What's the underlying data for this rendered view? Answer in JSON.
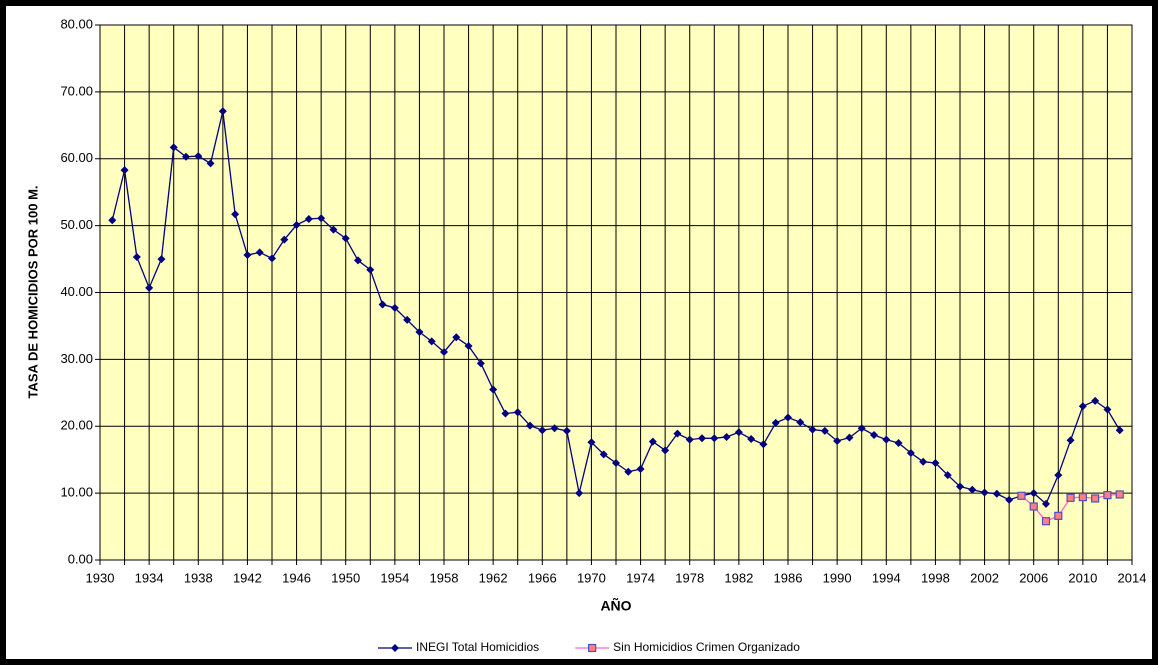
{
  "chart_data": {
    "type": "line",
    "xlabel": "AÑO",
    "ylabel": "TASA DE HOMICIDIOS POR 100 M.",
    "xlim": [
      1930,
      2014
    ],
    "xticks": [
      1930,
      1934,
      1938,
      1942,
      1946,
      1950,
      1954,
      1958,
      1962,
      1966,
      1970,
      1974,
      1978,
      1982,
      1986,
      1990,
      1994,
      1998,
      2002,
      2006,
      2010,
      2014
    ],
    "xminorticks": [
      1932,
      1936,
      1940,
      1944,
      1948,
      1952,
      1956,
      1960,
      1964,
      1968,
      1972,
      1976,
      1980,
      1984,
      1988,
      1992,
      1996,
      2000,
      2004,
      2008,
      2012
    ],
    "ylim": [
      0,
      80
    ],
    "yticks": [
      {
        "value": 0,
        "label": "0.00"
      },
      {
        "value": 10,
        "label": "10.00"
      },
      {
        "value": 20,
        "label": "20.00"
      },
      {
        "value": 30,
        "label": "30.00"
      },
      {
        "value": 40,
        "label": "40.00"
      },
      {
        "value": 50,
        "label": "50.00"
      },
      {
        "value": 60,
        "label": "60.00"
      },
      {
        "value": 70,
        "label": "70.00"
      },
      {
        "value": 80,
        "label": "80.00"
      }
    ],
    "grid": true,
    "legend": "bottom",
    "series": [
      {
        "name": "INEGI Total Homicidios",
        "color": "#000080",
        "marker": "diamond",
        "x": [
          1931,
          1932,
          1933,
          1934,
          1935,
          1936,
          1937,
          1938,
          1939,
          1940,
          1941,
          1942,
          1943,
          1944,
          1945,
          1946,
          1947,
          1948,
          1949,
          1950,
          1951,
          1952,
          1953,
          1954,
          1955,
          1956,
          1957,
          1958,
          1959,
          1960,
          1961,
          1962,
          1963,
          1964,
          1965,
          1966,
          1967,
          1968,
          1969,
          1970,
          1971,
          1972,
          1973,
          1974,
          1975,
          1976,
          1977,
          1978,
          1979,
          1980,
          1981,
          1982,
          1983,
          1984,
          1985,
          1986,
          1987,
          1988,
          1989,
          1990,
          1991,
          1992,
          1993,
          1994,
          1995,
          1996,
          1997,
          1998,
          1999,
          2000,
          2001,
          2002,
          2003,
          2004,
          2005,
          2006,
          2007,
          2008,
          2009,
          2010,
          2011,
          2012,
          2013
        ],
        "values": [
          50.8,
          58.3,
          45.3,
          40.7,
          45.0,
          61.7,
          60.3,
          60.4,
          59.3,
          67.1,
          51.7,
          45.6,
          46.0,
          45.1,
          47.9,
          50.1,
          51.0,
          51.1,
          49.4,
          48.1,
          44.8,
          43.4,
          38.2,
          37.7,
          35.9,
          34.1,
          32.7,
          31.1,
          33.3,
          32.0,
          29.4,
          25.5,
          21.9,
          22.1,
          20.1,
          19.4,
          19.7,
          19.3,
          10.0,
          17.6,
          15.8,
          14.5,
          13.2,
          13.6,
          17.7,
          16.4,
          18.9,
          18.0,
          18.2,
          18.2,
          18.4,
          19.1,
          18.1,
          17.3,
          20.5,
          21.3,
          20.6,
          19.5,
          19.3,
          17.8,
          18.3,
          19.7,
          18.7,
          18.0,
          17.5,
          16.0,
          14.7,
          14.5,
          12.7,
          11.0,
          10.5,
          10.1,
          9.9,
          9.0,
          9.6,
          10.0,
          8.4,
          12.7,
          17.9,
          23.0,
          23.8,
          22.5,
          19.4
        ]
      },
      {
        "name": "Sin Homicidios Crimen Organizado",
        "color": "#ff66cc",
        "marker": "square",
        "marker_fill": "#ff8080",
        "marker_edge": "#5050c0",
        "x": [
          2005,
          2006,
          2007,
          2008,
          2009,
          2010,
          2011,
          2012,
          2013
        ],
        "values": [
          9.6,
          8.0,
          5.8,
          6.6,
          9.3,
          9.4,
          9.2,
          9.7,
          9.8
        ]
      }
    ]
  }
}
